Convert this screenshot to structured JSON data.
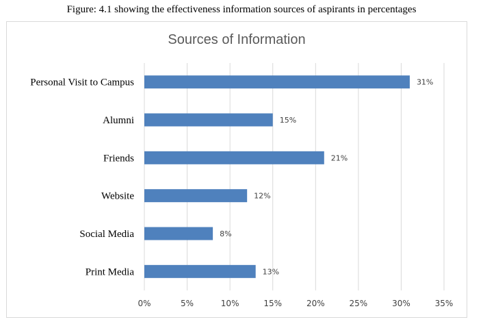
{
  "caption": "Figure: 4.1 showing the effectiveness information sources of aspirants in percentages",
  "chart_data": {
    "type": "bar",
    "orientation": "horizontal",
    "title": "Sources of Information",
    "categories": [
      "Personal Visit to Campus",
      "Alumni",
      "Friends",
      "Website",
      "Social Media",
      "Print Media"
    ],
    "values": [
      31,
      15,
      21,
      12,
      8,
      13
    ],
    "data_labels": [
      "31%",
      "15%",
      "21%",
      "12%",
      "8%",
      "13%"
    ],
    "xlim": [
      0,
      35
    ],
    "x_ticks": [
      "0%",
      "5%",
      "10%",
      "15%",
      "20%",
      "25%",
      "30%",
      "35%"
    ],
    "grid": "vertical",
    "legend": "none",
    "bar_color": "#4f81bd",
    "grid_color": "#d9d9d9"
  }
}
